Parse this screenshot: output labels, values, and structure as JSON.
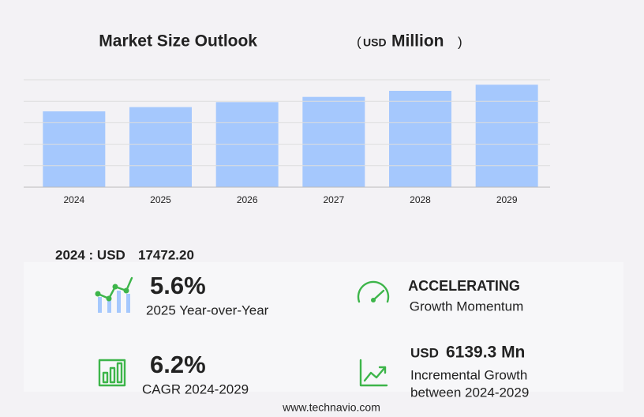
{
  "chart_data": {
    "type": "bar",
    "title": "Market Size Outlook",
    "unit_open": "(",
    "unit_currency": "USD",
    "unit": "Million",
    "unit_close": ")",
    "categories": [
      "2024",
      "2025",
      "2026",
      "2027",
      "2028",
      "2029"
    ],
    "values": [
      17472.2,
      18450,
      19600,
      20800,
      22200,
      23611.5
    ],
    "color": "#a5c8fd",
    "ylim": [
      0,
      24750
    ],
    "yticks": [
      0,
      4950,
      9900,
      14850,
      19800,
      24750
    ],
    "grid": true
  },
  "summary": {
    "label": "2024 : USD",
    "value": "17472.20"
  },
  "kpis": [
    {
      "value": "5.6%",
      "label": "2025 Year-over-Year"
    },
    {
      "value": "ACCELERATING",
      "label": "Growth Momentum"
    },
    {
      "value": "6.2%",
      "label": "CAGR 2024-2029"
    },
    {
      "currency": "USD",
      "value": "6139.3 Mn",
      "label": "Incremental Growth",
      "label2": "between 2024-2029"
    }
  ],
  "footer": "www.technavio.com"
}
